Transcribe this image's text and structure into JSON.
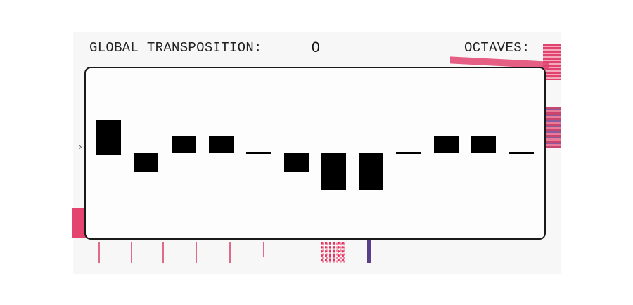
{
  "header": {
    "global_transposition_label": "GLOBAL TRANSPOSITION:",
    "global_transposition_value": "0",
    "octaves_label": "OCTAVES:"
  },
  "pattern_steps": [
    {
      "step": 1,
      "type": "note",
      "level": 2
    },
    {
      "step": 2,
      "type": "note",
      "level": -1
    },
    {
      "step": 3,
      "type": "note",
      "level": 1
    },
    {
      "step": 4,
      "type": "note",
      "level": 1
    },
    {
      "step": 5,
      "type": "rest",
      "level": 0
    },
    {
      "step": 6,
      "type": "note",
      "level": -1
    },
    {
      "step": 7,
      "type": "note",
      "level": -2
    },
    {
      "step": 8,
      "type": "note",
      "level": -2
    },
    {
      "step": 9,
      "type": "rest",
      "level": 0
    },
    {
      "step": 10,
      "type": "note",
      "level": 1
    },
    {
      "step": 11,
      "type": "note",
      "level": 1
    },
    {
      "step": 12,
      "type": "rest",
      "level": 0
    }
  ],
  "colors": {
    "panel_border": "#1a1a1a",
    "note": "#000000",
    "accent_red": "#e2436e",
    "accent_purple": "#5b3f8c"
  }
}
